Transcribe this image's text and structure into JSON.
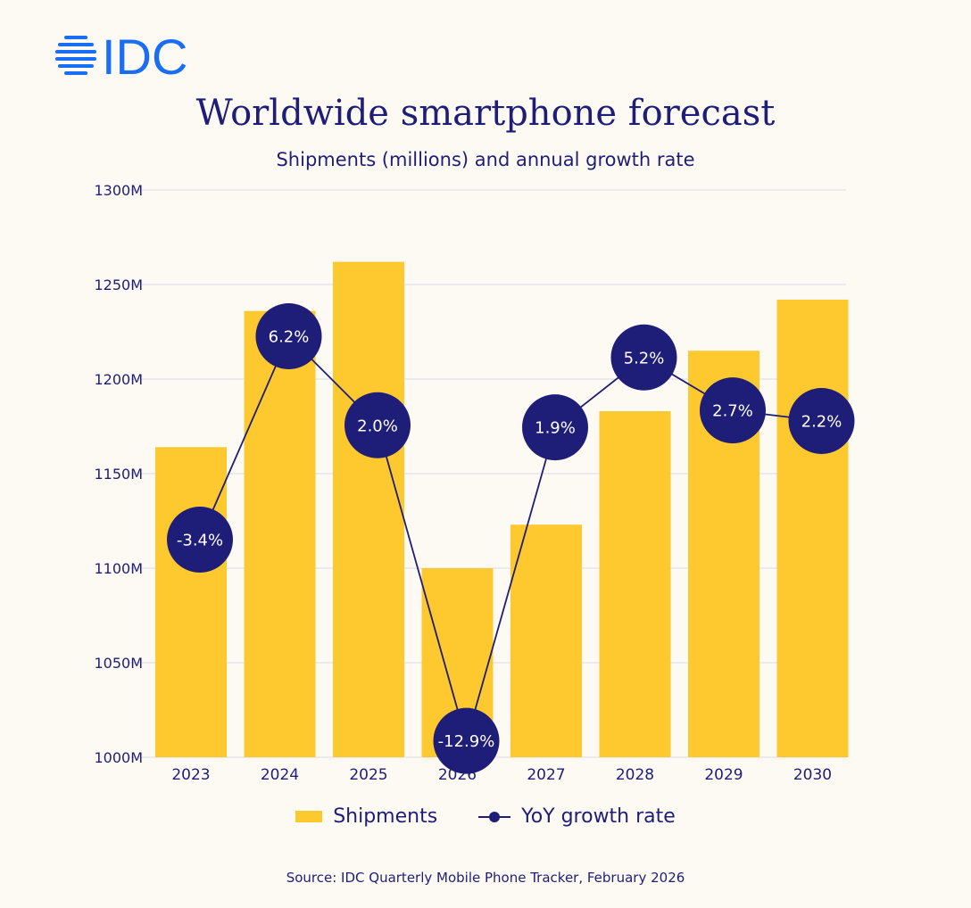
{
  "brand": {
    "logo_text": "IDC",
    "logo_color": "#1a6ef5"
  },
  "colors": {
    "bar": "#fec82f",
    "line": "#1e1e78",
    "grid": "#dcdbe6",
    "text": "#1e1e78",
    "background": "#fdfaf4"
  },
  "chart_data": {
    "type": "bar",
    "title": "Worldwide smartphone forecast",
    "subtitle": "Shipments (millions) and annual growth rate",
    "categories": [
      "2023",
      "2024",
      "2025",
      "2026",
      "2027",
      "2028",
      "2029",
      "2030"
    ],
    "y_ticks": [
      "1000M",
      "1050M",
      "1100M",
      "1150M",
      "1200M",
      "1250M",
      "1300M"
    ],
    "ylim": [
      1000,
      1300
    ],
    "grid": true,
    "legend_position": "bottom-center",
    "series": [
      {
        "name": "Shipments",
        "type": "bar",
        "values": [
          1164,
          1236,
          1262,
          1100,
          1123,
          1183,
          1215,
          1242
        ]
      },
      {
        "name": "YoY growth rate",
        "type": "line",
        "values": [
          -3.4,
          6.2,
          2.0,
          -12.9,
          1.9,
          5.2,
          2.7,
          2.2
        ],
        "labels": [
          "-3.4%",
          "6.2%",
          "2.0%",
          "-12.9%",
          "1.9%",
          "5.2%",
          "2.7%",
          "2.2%"
        ]
      }
    ]
  },
  "legend": {
    "bar_label": "Shipments",
    "line_label": "YoY growth rate"
  },
  "source": "Source:  IDC Quarterly Mobile Phone Tracker, February 2026"
}
